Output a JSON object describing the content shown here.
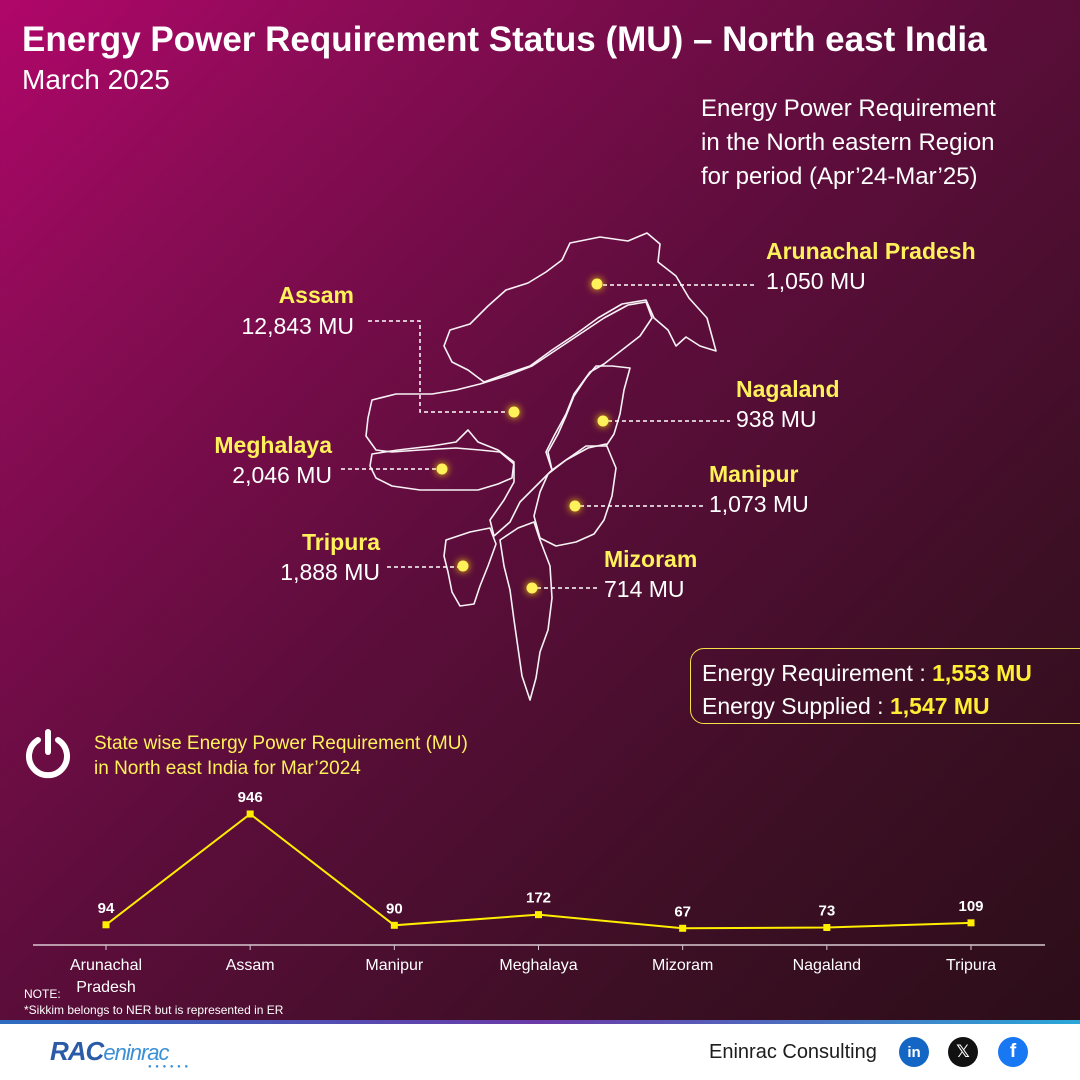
{
  "header": {
    "title": "Energy Power Requirement Status (MU) – North east India",
    "subtitle": "March 2025"
  },
  "period_note": [
    "Energy Power Requirement",
    "in the North eastern Region",
    "for period (Apr’24-Mar’25)"
  ],
  "map_states": [
    {
      "name": "Arunachal Pradesh",
      "value": "1,050 MU"
    },
    {
      "name": "Assam",
      "value": "12,843 MU"
    },
    {
      "name": "Nagaland",
      "value": "938 MU"
    },
    {
      "name": "Meghalaya",
      "value": "2,046 MU"
    },
    {
      "name": "Manipur",
      "value": "1,073 MU"
    },
    {
      "name": "Tripura",
      "value": "1,888 MU"
    },
    {
      "name": "Mizoram",
      "value": "714 MU"
    }
  ],
  "summary": {
    "requirement_label": "Energy Requirement : ",
    "requirement_value": "1,553 MU",
    "supplied_label": "Energy Supplied : ",
    "supplied_value": "1,547 MU"
  },
  "chart_title": [
    "State wise Energy Power Requirement (MU)",
    "in North east India for Mar’2024"
  ],
  "chart_data": {
    "type": "line",
    "categories": [
      "Arunachal Pradesh",
      "Assam",
      "Manipur",
      "Meghalaya",
      "Mizoram",
      "Nagaland",
      "Tripura"
    ],
    "category_labels": [
      [
        "Arunachal",
        "Pradesh"
      ],
      [
        "Assam"
      ],
      [
        "Manipur"
      ],
      [
        "Meghalaya"
      ],
      [
        "Mizoram"
      ],
      [
        "Nagaland"
      ],
      [
        "Tripura"
      ]
    ],
    "values": [
      94,
      946,
      90,
      172,
      67,
      73,
      109
    ],
    "ylim": [
      0,
      946
    ],
    "grid": false,
    "legend": "none",
    "line_color": "#ffee00"
  },
  "note": {
    "label": "NOTE:",
    "text": "*Sikkim belongs to NER but is represented in ER"
  },
  "footer": {
    "logo_main": "RAC",
    "logo_sub": "eninrac",
    "company": "Eninrac Consulting",
    "social": [
      "linkedin-icon",
      "x-icon",
      "facebook-icon"
    ]
  }
}
